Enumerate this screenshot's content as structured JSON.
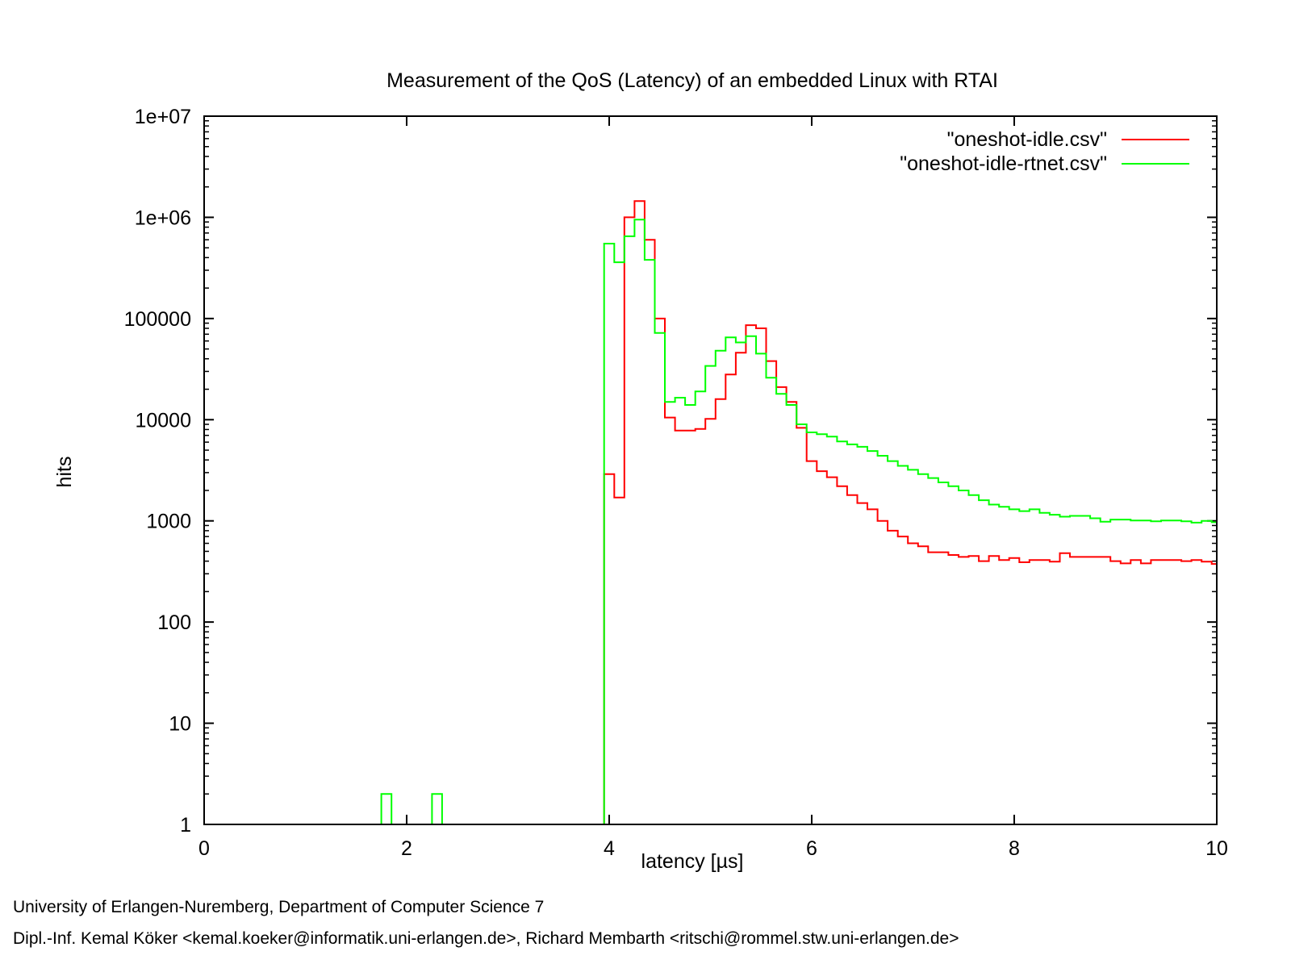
{
  "chart_data": {
    "type": "line",
    "title": "Measurement of the QoS (Latency) of an embedded Linux with RTAI",
    "xlabel": "latency [µs]",
    "ylabel": "hits",
    "xlim": [
      0,
      10
    ],
    "ylim": [
      1,
      10000000
    ],
    "yscale": "log",
    "xticks": [
      0,
      2,
      4,
      6,
      8,
      10
    ],
    "xtick_labels": [
      "0",
      "2",
      "4",
      "6",
      "8",
      "10"
    ],
    "yticks": [
      1,
      10,
      100,
      1000,
      10000,
      100000,
      1000000,
      10000000
    ],
    "ytick_labels": [
      "1",
      "10",
      "100",
      "1000",
      "10000",
      "100000",
      "1e+06",
      "1e+07"
    ],
    "grid": false,
    "legend_position": "top-right",
    "step_style": "histogram steps",
    "series": [
      {
        "name": "\"oneshot-idle.csv\"",
        "color": "#ff0000",
        "points": [
          [
            3.95,
            1
          ],
          [
            3.95,
            2900
          ],
          [
            4.05,
            2900
          ],
          [
            4.05,
            1700
          ],
          [
            4.15,
            1700
          ],
          [
            4.15,
            1000000
          ],
          [
            4.25,
            1000000
          ],
          [
            4.25,
            1450000
          ],
          [
            4.35,
            1450000
          ],
          [
            4.35,
            600000
          ],
          [
            4.45,
            600000
          ],
          [
            4.45,
            100000
          ],
          [
            4.55,
            100000
          ],
          [
            4.55,
            10500
          ],
          [
            4.65,
            10500
          ],
          [
            4.65,
            7800
          ],
          [
            4.85,
            7800
          ],
          [
            4.85,
            8100
          ],
          [
            4.95,
            8100
          ],
          [
            4.95,
            10200
          ],
          [
            5.05,
            10200
          ],
          [
            5.05,
            16000
          ],
          [
            5.15,
            16000
          ],
          [
            5.15,
            28000
          ],
          [
            5.25,
            28000
          ],
          [
            5.25,
            46000
          ],
          [
            5.35,
            46000
          ],
          [
            5.35,
            86000
          ],
          [
            5.45,
            86000
          ],
          [
            5.45,
            80000
          ],
          [
            5.55,
            80000
          ],
          [
            5.55,
            38000
          ],
          [
            5.65,
            38000
          ],
          [
            5.65,
            21000
          ],
          [
            5.75,
            21000
          ],
          [
            5.75,
            15000
          ],
          [
            5.85,
            15000
          ],
          [
            5.85,
            8300
          ],
          [
            5.95,
            8300
          ],
          [
            5.95,
            3900
          ],
          [
            6.05,
            3900
          ],
          [
            6.05,
            3100
          ],
          [
            6.15,
            3100
          ],
          [
            6.15,
            2700
          ],
          [
            6.25,
            2700
          ],
          [
            6.25,
            2200
          ],
          [
            6.35,
            2200
          ],
          [
            6.35,
            1800
          ],
          [
            6.45,
            1800
          ],
          [
            6.45,
            1500
          ],
          [
            6.55,
            1500
          ],
          [
            6.55,
            1300
          ],
          [
            6.65,
            1300
          ],
          [
            6.65,
            1000
          ],
          [
            6.75,
            1000
          ],
          [
            6.75,
            800
          ],
          [
            6.85,
            800
          ],
          [
            6.85,
            700
          ],
          [
            6.95,
            700
          ],
          [
            6.95,
            600
          ],
          [
            7.05,
            600
          ],
          [
            7.05,
            560
          ],
          [
            7.15,
            560
          ],
          [
            7.15,
            490
          ],
          [
            7.35,
            490
          ],
          [
            7.35,
            460
          ],
          [
            7.45,
            460
          ],
          [
            7.45,
            440
          ],
          [
            7.55,
            440
          ],
          [
            7.55,
            450
          ],
          [
            7.65,
            450
          ],
          [
            7.65,
            400
          ],
          [
            7.75,
            400
          ],
          [
            7.75,
            450
          ],
          [
            7.85,
            450
          ],
          [
            7.85,
            410
          ],
          [
            7.95,
            410
          ],
          [
            7.95,
            430
          ],
          [
            8.05,
            430
          ],
          [
            8.05,
            390
          ],
          [
            8.15,
            390
          ],
          [
            8.15,
            410
          ],
          [
            8.35,
            410
          ],
          [
            8.35,
            395
          ],
          [
            8.45,
            395
          ],
          [
            8.45,
            480
          ],
          [
            8.55,
            480
          ],
          [
            8.55,
            440
          ],
          [
            8.95,
            440
          ],
          [
            8.95,
            400
          ],
          [
            9.05,
            400
          ],
          [
            9.05,
            380
          ],
          [
            9.15,
            380
          ],
          [
            9.15,
            410
          ],
          [
            9.25,
            410
          ],
          [
            9.25,
            380
          ],
          [
            9.35,
            380
          ],
          [
            9.35,
            410
          ],
          [
            9.65,
            410
          ],
          [
            9.65,
            400
          ],
          [
            9.75,
            400
          ],
          [
            9.75,
            410
          ],
          [
            9.85,
            410
          ],
          [
            9.85,
            395
          ],
          [
            9.95,
            395
          ],
          [
            9.95,
            375
          ],
          [
            10,
            375
          ]
        ]
      },
      {
        "name": "\"oneshot-idle-rtnet.csv\"",
        "color": "#00ff00",
        "points": [
          [
            1.75,
            1
          ],
          [
            1.75,
            2
          ],
          [
            1.85,
            2
          ],
          [
            1.85,
            1
          ],
          [
            2.25,
            1
          ],
          [
            2.25,
            2
          ],
          [
            2.35,
            2
          ],
          [
            2.35,
            1
          ],
          [
            3.95,
            1
          ],
          [
            3.95,
            550000
          ],
          [
            4.05,
            550000
          ],
          [
            4.05,
            360000
          ],
          [
            4.15,
            360000
          ],
          [
            4.15,
            650000
          ],
          [
            4.25,
            650000
          ],
          [
            4.25,
            950000
          ],
          [
            4.35,
            950000
          ],
          [
            4.35,
            380000
          ],
          [
            4.45,
            380000
          ],
          [
            4.45,
            72000
          ],
          [
            4.55,
            72000
          ],
          [
            4.55,
            15000
          ],
          [
            4.65,
            15000
          ],
          [
            4.65,
            16500
          ],
          [
            4.75,
            16500
          ],
          [
            4.75,
            14000
          ],
          [
            4.85,
            14000
          ],
          [
            4.85,
            19000
          ],
          [
            4.95,
            19000
          ],
          [
            4.95,
            34000
          ],
          [
            5.05,
            34000
          ],
          [
            5.05,
            48000
          ],
          [
            5.15,
            48000
          ],
          [
            5.15,
            65000
          ],
          [
            5.25,
            65000
          ],
          [
            5.25,
            58000
          ],
          [
            5.35,
            58000
          ],
          [
            5.35,
            67000
          ],
          [
            5.45,
            67000
          ],
          [
            5.45,
            45000
          ],
          [
            5.55,
            45000
          ],
          [
            5.55,
            26000
          ],
          [
            5.65,
            26000
          ],
          [
            5.65,
            18000
          ],
          [
            5.75,
            18000
          ],
          [
            5.75,
            14000
          ],
          [
            5.85,
            14000
          ],
          [
            5.85,
            9000
          ],
          [
            5.95,
            9000
          ],
          [
            5.95,
            7500
          ],
          [
            6.05,
            7500
          ],
          [
            6.05,
            7200
          ],
          [
            6.15,
            7200
          ],
          [
            6.15,
            6800
          ],
          [
            6.25,
            6800
          ],
          [
            6.25,
            6100
          ],
          [
            6.35,
            6100
          ],
          [
            6.35,
            5700
          ],
          [
            6.45,
            5700
          ],
          [
            6.45,
            5400
          ],
          [
            6.55,
            5400
          ],
          [
            6.55,
            4900
          ],
          [
            6.65,
            4900
          ],
          [
            6.65,
            4400
          ],
          [
            6.75,
            4400
          ],
          [
            6.75,
            3900
          ],
          [
            6.85,
            3900
          ],
          [
            6.85,
            3500
          ],
          [
            6.95,
            3500
          ],
          [
            6.95,
            3200
          ],
          [
            7.05,
            3200
          ],
          [
            7.05,
            2900
          ],
          [
            7.15,
            2900
          ],
          [
            7.15,
            2650
          ],
          [
            7.25,
            2650
          ],
          [
            7.25,
            2400
          ],
          [
            7.35,
            2400
          ],
          [
            7.35,
            2200
          ],
          [
            7.45,
            2200
          ],
          [
            7.45,
            2000
          ],
          [
            7.55,
            2000
          ],
          [
            7.55,
            1800
          ],
          [
            7.65,
            1800
          ],
          [
            7.65,
            1600
          ],
          [
            7.75,
            1600
          ],
          [
            7.75,
            1450
          ],
          [
            7.85,
            1450
          ],
          [
            7.85,
            1380
          ],
          [
            7.95,
            1380
          ],
          [
            7.95,
            1300
          ],
          [
            8.05,
            1300
          ],
          [
            8.05,
            1250
          ],
          [
            8.15,
            1250
          ],
          [
            8.15,
            1300
          ],
          [
            8.25,
            1300
          ],
          [
            8.25,
            1200
          ],
          [
            8.35,
            1200
          ],
          [
            8.35,
            1150
          ],
          [
            8.45,
            1150
          ],
          [
            8.45,
            1100
          ],
          [
            8.55,
            1100
          ],
          [
            8.55,
            1120
          ],
          [
            8.75,
            1120
          ],
          [
            8.75,
            1060
          ],
          [
            8.85,
            1060
          ],
          [
            8.85,
            980
          ],
          [
            8.95,
            980
          ],
          [
            8.95,
            1030
          ],
          [
            9.15,
            1030
          ],
          [
            9.15,
            1010
          ],
          [
            9.35,
            1010
          ],
          [
            9.35,
            990
          ],
          [
            9.45,
            990
          ],
          [
            9.45,
            1010
          ],
          [
            9.65,
            1010
          ],
          [
            9.65,
            990
          ],
          [
            9.75,
            990
          ],
          [
            9.75,
            960
          ],
          [
            9.85,
            960
          ],
          [
            9.85,
            1000
          ],
          [
            9.95,
            1000
          ],
          [
            9.95,
            970
          ],
          [
            10,
            970
          ]
        ]
      }
    ]
  },
  "footer": {
    "line1": "University of Erlangen-Nuremberg, Department of Computer Science 7",
    "line2": "Dipl.-Inf. Kemal Köker <kemal.koeker@informatik.uni-erlangen.de>, Richard Membarth <ritschi@rommel.stw.uni-erlangen.de>"
  }
}
